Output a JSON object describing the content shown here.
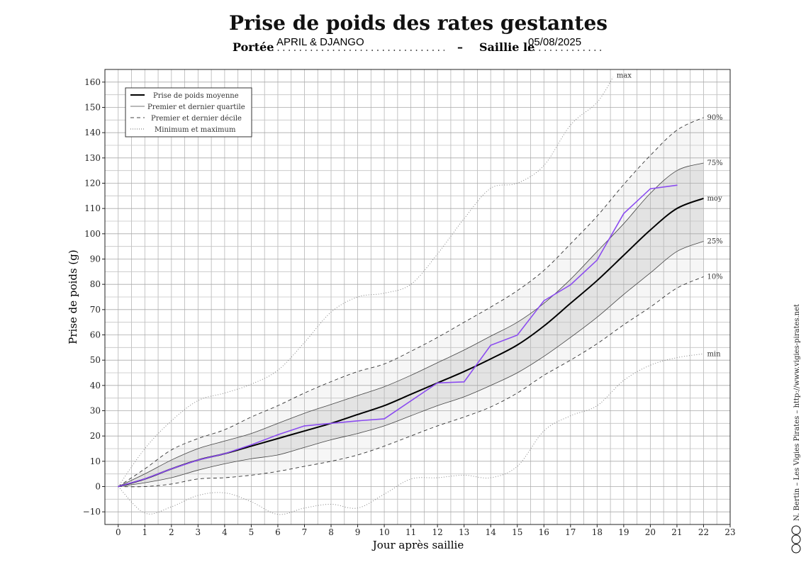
{
  "header": {
    "title": "Prise de poids des rates gestantes",
    "litter_label": "Portée",
    "litter_value": "APRIL & DJANGO",
    "separator": "–",
    "mating_label": "Saillie le",
    "mating_value": "05/08/2025"
  },
  "credit": "N. Bertin – Les Vigies Pirates – http://www.vigies-pirates.net",
  "license_icons": [
    "cc-icon",
    "by-icon",
    "copyright-icon"
  ],
  "chart_data": {
    "type": "line",
    "title": "Prise de poids des rates gestantes",
    "xlabel": "Jour après saillie",
    "ylabel": "Prise de poids (g)",
    "xlim": [
      -0.5,
      23
    ],
    "ylim": [
      -15,
      165
    ],
    "xticks": [
      0,
      1,
      2,
      3,
      4,
      5,
      6,
      7,
      8,
      9,
      10,
      11,
      12,
      13,
      14,
      15,
      16,
      17,
      18,
      19,
      20,
      21,
      22,
      23
    ],
    "yticks": [
      -10,
      0,
      10,
      20,
      30,
      40,
      50,
      60,
      70,
      80,
      90,
      100,
      110,
      120,
      130,
      140,
      150,
      160
    ],
    "grid": true,
    "legend_position": "top-left",
    "legend": [
      {
        "label": "Prise de poids moyenne",
        "style": "thick"
      },
      {
        "label": "Premier et dernier quartile",
        "style": "thin"
      },
      {
        "label": "Premier et dernier décile",
        "style": "dashed"
      },
      {
        "label": "Minimum et maximum",
        "style": "dotted"
      }
    ],
    "curve_labels": {
      "max": "max",
      "d90": "90%",
      "q75": "75%",
      "mean": "moy",
      "q25": "25%",
      "d10": "10%",
      "min": "min"
    },
    "reference": {
      "x": [
        0,
        1,
        2,
        3,
        4,
        5,
        6,
        7,
        8,
        9,
        10,
        11,
        12,
        13,
        14,
        15,
        16,
        17,
        18,
        19,
        20,
        21,
        22
      ],
      "mean": [
        0,
        3,
        7,
        10.5,
        13,
        16,
        19,
        22,
        25,
        28.5,
        32,
        36.5,
        41,
        45.5,
        50.5,
        56,
        63.5,
        72.5,
        81.5,
        91.5,
        101.5,
        110,
        114
      ],
      "q75": [
        0,
        5,
        10.5,
        15,
        18,
        21,
        25,
        29,
        32.5,
        36,
        39.5,
        44,
        49,
        54,
        59.5,
        65,
        72.5,
        82,
        93,
        104,
        116,
        125,
        128
      ],
      "q25": [
        0,
        1.5,
        3.5,
        6.5,
        9,
        11,
        12.5,
        15.5,
        18.5,
        21,
        24,
        28,
        32,
        35.5,
        40,
        45,
        51.5,
        59,
        67,
        76,
        84.5,
        93,
        97
      ],
      "d90": [
        0,
        7,
        14.5,
        19,
        22.5,
        27.5,
        32,
        37,
        41.5,
        45.5,
        48.5,
        53.5,
        59,
        65,
        71,
        77.5,
        85.5,
        96,
        107,
        119.5,
        131,
        141,
        146
      ],
      "d10": [
        0,
        0,
        1,
        3,
        3.5,
        4.5,
        6,
        8,
        10,
        12.5,
        16,
        20,
        24,
        27.5,
        31.5,
        37,
        44,
        50,
        56.5,
        64,
        71,
        78.5,
        83
      ],
      "min": [
        0,
        -10.5,
        -8,
        -3.5,
        -2.5,
        -6,
        -11,
        -8.5,
        -7,
        -8.5,
        -3,
        3,
        3.5,
        4.5,
        3.5,
        8,
        22,
        28,
        32,
        42,
        48,
        51,
        52.5
      ]
    },
    "max": {
      "x": [
        0,
        1,
        2,
        3,
        4,
        5,
        6,
        7,
        8,
        9,
        10,
        11,
        12,
        13,
        14,
        15,
        16,
        17,
        18,
        18.6
      ],
      "y": [
        0,
        15,
        26,
        34,
        37,
        40.5,
        46,
        57,
        69,
        75,
        76.5,
        80,
        92,
        106,
        118,
        120,
        127,
        143,
        152,
        162
      ]
    },
    "series": [
      {
        "color": "#8b4cf0",
        "x": [
          0,
          1,
          2,
          3,
          4,
          5,
          6,
          7,
          8,
          9,
          10,
          12,
          13,
          14,
          15,
          16,
          17,
          18,
          19,
          20,
          21
        ],
        "y": [
          0,
          3,
          7,
          10.5,
          13,
          16.5,
          20.5,
          24,
          25,
          26,
          26.8,
          41,
          41.4,
          55.9,
          59.9,
          73.5,
          79.8,
          89.6,
          108,
          117.8,
          119.2
        ]
      }
    ]
  }
}
